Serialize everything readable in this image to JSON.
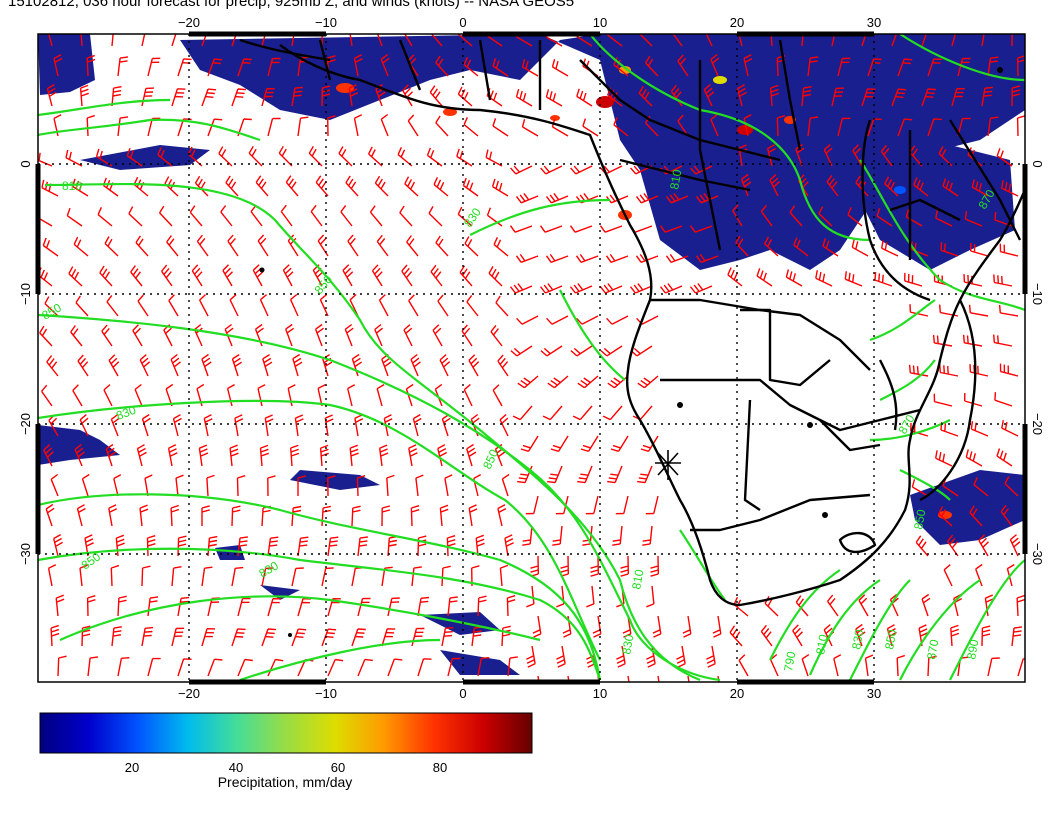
{
  "title": "15102812, 036 hour forecast for precip, 925mb Z, and winds (knots) -- NASA GEOS5",
  "map": {
    "lon_range": [
      -30,
      42
    ],
    "lat_range": [
      -40,
      10
    ],
    "lon_ticks": [
      {
        "value": -20,
        "label": "−20"
      },
      {
        "value": -10,
        "label": "−10"
      },
      {
        "value": 0,
        "label": "0"
      },
      {
        "value": 10,
        "label": "10"
      },
      {
        "value": 20,
        "label": "20"
      },
      {
        "value": 30,
        "label": "30"
      }
    ],
    "lat_ticks": [
      {
        "value": 0,
        "label": "0"
      },
      {
        "value": -10,
        "label": "−10"
      },
      {
        "value": -20,
        "label": "−20"
      },
      {
        "value": -30,
        "label": "−30"
      }
    ],
    "colors": {
      "precip_dark": "#1a1f8f",
      "contour": "#22dd22",
      "wind_barb": "#ff0000",
      "coastline": "#000000"
    },
    "contour_labels": [
      "810",
      "830",
      "850",
      "850",
      "830",
      "850",
      "850",
      "830",
      "810",
      "790",
      "810",
      "830",
      "850",
      "870",
      "890",
      "830",
      "850",
      "870",
      "810",
      "870"
    ],
    "station_marker": {
      "lon": 15,
      "lat": -23
    }
  },
  "colorbar": {
    "ticks": [
      "20",
      "40",
      "60",
      "80"
    ],
    "caption": "Precipitation, mm/day",
    "stops": [
      "#00007f",
      "#0000cc",
      "#0055ff",
      "#00bbee",
      "#44dd99",
      "#99dd44",
      "#dddd00",
      "#ff9900",
      "#ff3300",
      "#cc0000",
      "#660000"
    ]
  }
}
